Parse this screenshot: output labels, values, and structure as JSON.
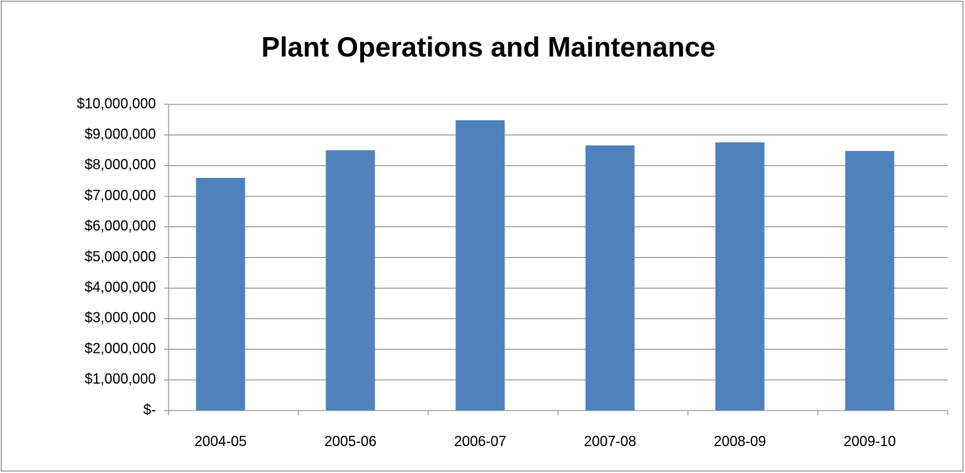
{
  "chart_data": {
    "type": "bar",
    "title": "Plant Operations and Maintenance",
    "categories": [
      "2004-05",
      "2005-06",
      "2006-07",
      "2007-08",
      "2008-09",
      "2009-10"
    ],
    "values": [
      7600000,
      8500000,
      9480000,
      8660000,
      8760000,
      8480000
    ],
    "color": "#4f81bd",
    "ylim": [
      0,
      10000000
    ],
    "yticks": [
      {
        "value": 0,
        "label": "$-"
      },
      {
        "value": 1000000,
        "label": "$1,000,000"
      },
      {
        "value": 2000000,
        "label": "$2,000,000"
      },
      {
        "value": 3000000,
        "label": "$3,000,000"
      },
      {
        "value": 4000000,
        "label": "$4,000,000"
      },
      {
        "value": 5000000,
        "label": "$5,000,000"
      },
      {
        "value": 6000000,
        "label": "$6,000,000"
      },
      {
        "value": 7000000,
        "label": "$7,000,000"
      },
      {
        "value": 8000000,
        "label": "$8,000,000"
      },
      {
        "value": 9000000,
        "label": "$9,000,000"
      },
      {
        "value": 10000000,
        "label": "$10,000,000"
      }
    ],
    "grid": true
  }
}
